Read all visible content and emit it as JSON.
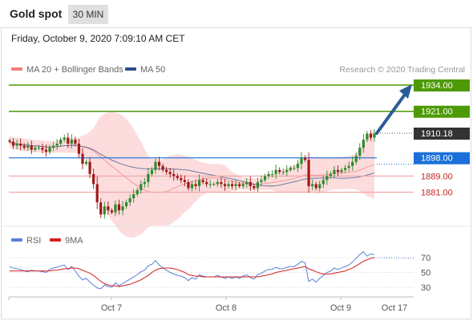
{
  "header": {
    "title": "Gold spot",
    "interval": "30 MIN"
  },
  "timestamp": "Friday, October 9, 2020 7:09:10 AM CET",
  "legend": {
    "ma20": {
      "label": "MA 20 + Bollinger Bands",
      "color": "#f08080"
    },
    "ma50": {
      "label": "MA 50",
      "color": "#2b4f8a"
    }
  },
  "credit": "Research © 2020 Trading Central",
  "levels": [
    {
      "value": 1934.0,
      "label": "1934.00",
      "color": "#4e9a06",
      "style": "box"
    },
    {
      "value": 1921.0,
      "label": "1921.00",
      "color": "#4e9a06",
      "style": "box"
    },
    {
      "value": 1910.18,
      "label": "1910.18",
      "color": "#333333",
      "style": "box"
    },
    {
      "value": 1898.0,
      "label": "1898.00",
      "color": "#1a6fd8",
      "style": "box"
    },
    {
      "value": 1889.0,
      "label": "1889.00",
      "color": "#cc2222",
      "style": "text"
    },
    {
      "value": 1881.0,
      "label": "1881.00",
      "color": "#cc2222",
      "style": "text"
    }
  ],
  "rsi_legend": {
    "rsi": {
      "label": "RSI",
      "color": "#5b7fd8"
    },
    "ma9": {
      "label": "9MA",
      "color": "#d42020"
    }
  },
  "rsi_ticks": [
    "70",
    "50",
    "30"
  ],
  "x_ticks": [
    "Oct 7",
    "Oct 8",
    "Oct 9",
    "Oct 17"
  ],
  "colors": {
    "up": "#2e8b2e",
    "down": "#a01818",
    "band_fill": "#fbd0d0",
    "arrow": "#2a5d96"
  },
  "chart_data": {
    "type": "candlestick",
    "ylim": [
      1865,
      1940
    ],
    "x_labels": [
      "Oct 7",
      "Oct 8",
      "Oct 9",
      "Oct 17"
    ],
    "price_close": [
      1906,
      1904,
      1905,
      1904,
      1903,
      1904,
      1902,
      1903,
      1903,
      1902,
      1901,
      1903,
      1904,
      1905,
      1907,
      1908,
      1905,
      1907,
      1905,
      1900,
      1895,
      1896,
      1890,
      1885,
      1876,
      1870,
      1874,
      1872,
      1871,
      1875,
      1872,
      1874,
      1876,
      1878,
      1880,
      1882,
      1885,
      1886,
      1890,
      1892,
      1896,
      1894,
      1892,
      1891,
      1890,
      1889,
      1888,
      1887,
      1886,
      1883,
      1885,
      1884,
      1887,
      1886,
      1885,
      1885,
      1885,
      1886,
      1885,
      1884,
      1885,
      1884,
      1885,
      1884,
      1885,
      1886,
      1884,
      1883,
      1886,
      1887,
      1889,
      1890,
      1890,
      1892,
      1891,
      1891,
      1892,
      1893,
      1893,
      1895,
      1898,
      1897,
      1884,
      1885,
      1883,
      1885,
      1887,
      1889,
      1890,
      1892,
      1891,
      1892,
      1893,
      1894,
      1896,
      1899,
      1903,
      1907,
      1910,
      1908,
      1910
    ],
    "series": [
      {
        "name": "MA 20 + Bollinger Bands",
        "type": "ma"
      },
      {
        "name": "MA 50",
        "type": "ma"
      },
      {
        "name": "RSI",
        "values": [
          58,
          56,
          55,
          54,
          52,
          51,
          53,
          52,
          52,
          51,
          50,
          54,
          56,
          57,
          59,
          60,
          54,
          58,
          52,
          45,
          40,
          42,
          37,
          33,
          29,
          28,
          33,
          31,
          30,
          36,
          32,
          35,
          38,
          41,
          44,
          47,
          51,
          53,
          59,
          61,
          66,
          60,
          56,
          53,
          50,
          48,
          46,
          45,
          43,
          39,
          43,
          41,
          47,
          45,
          44,
          44,
          44,
          46,
          44,
          42,
          44,
          42,
          44,
          42,
          45,
          47,
          43,
          41,
          47,
          49,
          52,
          54,
          54,
          57,
          55,
          55,
          57,
          58,
          58,
          61,
          65,
          63,
          38,
          41,
          37,
          42,
          46,
          50,
          52,
          56,
          54,
          56,
          58,
          60,
          64,
          69,
          74,
          78,
          72,
          75,
          74
        ]
      },
      {
        "name": "9MA",
        "values": [
          52,
          52,
          52,
          52,
          52,
          52,
          52,
          52,
          52,
          52,
          52,
          52,
          53,
          53,
          54,
          55,
          55,
          56,
          56,
          55,
          53,
          51,
          49,
          46,
          42,
          38,
          35,
          33,
          32,
          32,
          31,
          32,
          33,
          34,
          36,
          38,
          40,
          43,
          46,
          50,
          53,
          55,
          56,
          56,
          56,
          55,
          54,
          52,
          50,
          47,
          46,
          45,
          45,
          44,
          44,
          44,
          44,
          44,
          44,
          44,
          44,
          44,
          44,
          44,
          44,
          44,
          44,
          44,
          44,
          45,
          46,
          47,
          48,
          50,
          51,
          52,
          53,
          54,
          55,
          56,
          57,
          58,
          55,
          53,
          51,
          49,
          48,
          48,
          48,
          49,
          50,
          51,
          52,
          54,
          56,
          59,
          62,
          65,
          67,
          69,
          70
        ]
      }
    ]
  }
}
